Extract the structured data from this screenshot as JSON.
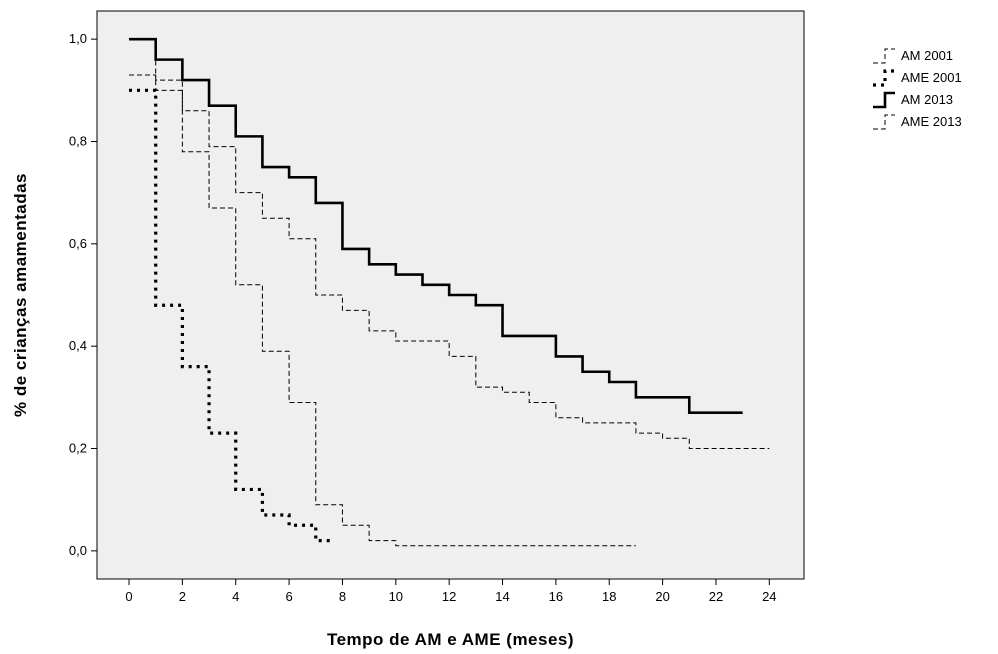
{
  "chart_data": {
    "type": "line",
    "step": true,
    "xlabel": "Tempo de AM e AME (meses)",
    "ylabel": "% de crianças amamentadas",
    "xlim": [
      -1.2,
      25.3
    ],
    "ylim": [
      -0.055,
      1.055
    ],
    "xticks": [
      0,
      2,
      4,
      6,
      8,
      10,
      12,
      14,
      16,
      18,
      20,
      22,
      24
    ],
    "xtick_labels": [
      "0",
      "2",
      "4",
      "6",
      "8",
      "10",
      "12",
      "14",
      "16",
      "18",
      "20",
      "22",
      "24"
    ],
    "yticks": [
      0.0,
      0.2,
      0.4,
      0.6,
      0.8,
      1.0
    ],
    "ytick_labels": [
      "0,0",
      "0,2",
      "0,4",
      "0,6",
      "0,8",
      "1,0"
    ],
    "background": "#efefef",
    "legend_position": "outside-right-top",
    "series": [
      {
        "name": "AM 2001",
        "style": "thin-dashed",
        "color": "#000000",
        "x": [
          1,
          2,
          3,
          4,
          5,
          6,
          7,
          8,
          9,
          10,
          11,
          12,
          13,
          14,
          15,
          16,
          17,
          18,
          19,
          20,
          21,
          22,
          23,
          24
        ],
        "y": [
          0.92,
          0.86,
          0.79,
          0.7,
          0.65,
          0.61,
          0.5,
          0.47,
          0.43,
          0.41,
          0.41,
          0.38,
          0.32,
          0.31,
          0.29,
          0.26,
          0.25,
          0.25,
          0.23,
          0.22,
          0.2,
          0.2,
          0.2,
          0.2
        ],
        "start_y": 1.0
      },
      {
        "name": "AME 2001",
        "style": "thick-dotted",
        "color": "#000000",
        "x": [
          1,
          2,
          3,
          4,
          5,
          6,
          7,
          7.7
        ],
        "y": [
          0.48,
          0.36,
          0.23,
          0.12,
          0.07,
          0.05,
          0.02,
          0.02
        ],
        "start_y": 0.9
      },
      {
        "name": "AM 2013",
        "style": "thick-solid",
        "color": "#000000",
        "x": [
          1,
          2,
          3,
          4,
          5,
          6,
          7,
          8,
          9,
          10,
          11,
          12,
          13,
          14,
          15,
          16,
          17,
          18,
          19,
          20,
          21,
          22,
          23
        ],
        "y": [
          0.96,
          0.92,
          0.87,
          0.81,
          0.75,
          0.73,
          0.68,
          0.59,
          0.56,
          0.54,
          0.52,
          0.5,
          0.48,
          0.42,
          0.42,
          0.38,
          0.35,
          0.33,
          0.3,
          0.3,
          0.27,
          0.27,
          0.27
        ],
        "start_y": 1.0
      },
      {
        "name": "AME 2013",
        "style": "thin-dashed",
        "color": "#000000",
        "x": [
          1,
          2,
          3,
          4,
          5,
          6,
          7,
          8,
          9,
          10,
          11,
          12,
          13,
          14,
          15,
          16,
          17,
          18,
          19
        ],
        "y": [
          0.9,
          0.78,
          0.67,
          0.52,
          0.39,
          0.29,
          0.09,
          0.05,
          0.02,
          0.01,
          0.01,
          0.01,
          0.01,
          0.01,
          0.01,
          0.01,
          0.01,
          0.01,
          0.01
        ],
        "start_y": 0.93
      }
    ]
  }
}
